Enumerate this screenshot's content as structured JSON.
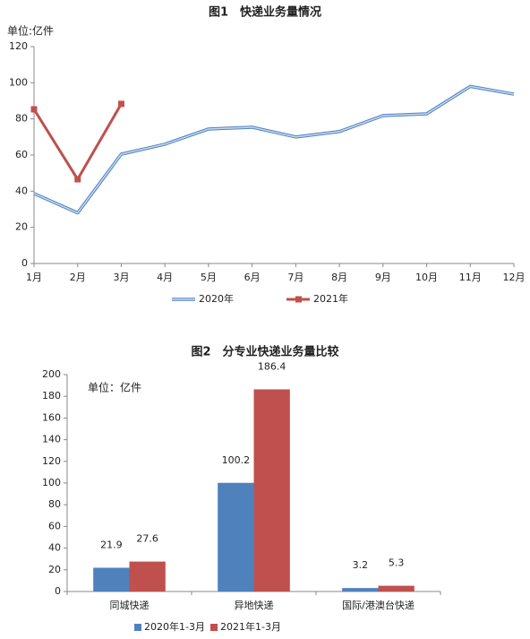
{
  "chart_data": [
    {
      "type": "line",
      "title": "图1　快递业务量情况",
      "unit_label": "单位:亿件",
      "categories": [
        "1月",
        "2月",
        "3月",
        "4月",
        "5月",
        "6月",
        "7月",
        "8月",
        "9月",
        "10月",
        "11月",
        "12月"
      ],
      "series": [
        {
          "name": "2020年",
          "color": "#4f81bd",
          "values": [
            38.7,
            28,
            60.5,
            66,
            74.4,
            75.4,
            70,
            73,
            81.8,
            82.8,
            98,
            93.7
          ]
        },
        {
          "name": "2021年",
          "color": "#c0504d",
          "values": [
            85.3,
            46.6,
            88.3,
            null,
            null,
            null,
            null,
            null,
            null,
            null,
            null,
            null
          ]
        }
      ],
      "ylim": [
        0,
        120
      ],
      "yticks": [
        0,
        20,
        40,
        60,
        80,
        100,
        120
      ]
    },
    {
      "type": "bar",
      "title": "图2　分专业快递业务量比较",
      "unit_label": "单位：亿件",
      "categories": [
        "同城快递",
        "异地快递",
        "国际/港澳台快递"
      ],
      "series": [
        {
          "name": "2020年1-3月",
          "color": "#4f81bd",
          "values": [
            21.9,
            100.2,
            3.2
          ]
        },
        {
          "name": "2021年1-3月",
          "color": "#c0504d",
          "values": [
            27.6,
            186.4,
            5.3
          ]
        }
      ],
      "ylim": [
        0,
        200
      ],
      "yticks": [
        0,
        20,
        40,
        60,
        80,
        100,
        120,
        140,
        160,
        180,
        200
      ]
    }
  ]
}
